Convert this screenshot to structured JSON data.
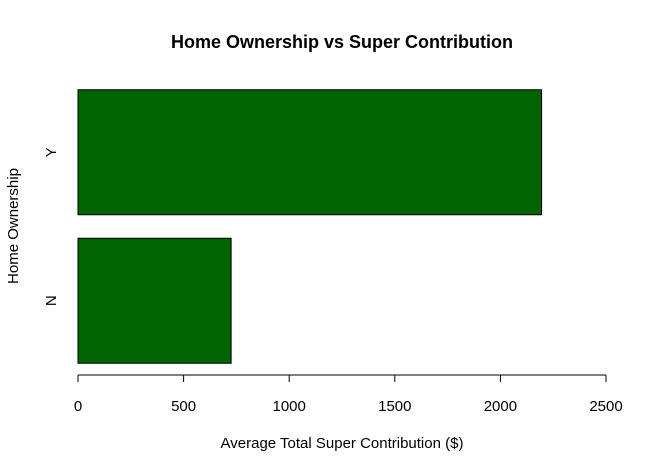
{
  "chart_data": {
    "type": "bar",
    "orientation": "horizontal",
    "title": "Home Ownership vs Super Contribution",
    "xlabel": "Average Total Super Contribution ($)",
    "ylabel": "Home Ownership",
    "categories": [
      "N",
      "Y"
    ],
    "values": [
      725,
      2195
    ],
    "xlim": [
      0,
      2500
    ],
    "xticks": [
      0,
      500,
      1000,
      1500,
      2000,
      2500
    ],
    "xtick_labels": [
      "0",
      "500",
      "1000",
      "1500",
      "2000",
      "2500"
    ],
    "grid": false,
    "bar_color": "#006400",
    "bar_border_color": "#000000"
  }
}
